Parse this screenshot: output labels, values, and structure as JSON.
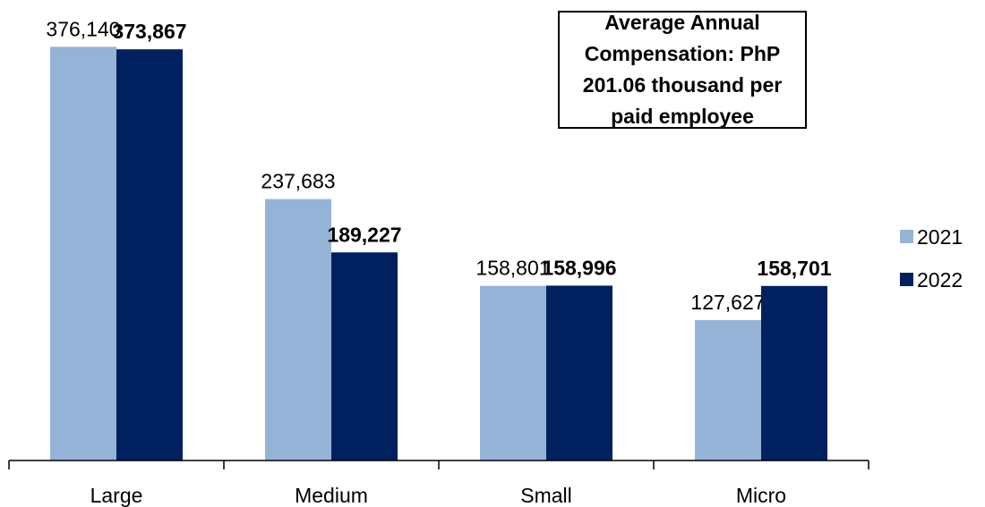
{
  "chart_data": {
    "type": "bar",
    "annotation": "Average Annual Compensation: PhP 201.06 thousand per paid employee",
    "categories": [
      "Large",
      "Medium",
      "Small",
      "Micro"
    ],
    "series": [
      {
        "name": "2021",
        "color": "#95b3d7",
        "values": [
          376140,
          237683,
          158801,
          127627
        ],
        "value_labels": [
          "376,140",
          "237,683",
          "158,801",
          "127,627"
        ]
      },
      {
        "name": "2022",
        "color": "#002060",
        "values": [
          373867,
          189227,
          158996,
          158701
        ],
        "value_labels": [
          "373,867",
          "189,227",
          "158,996",
          "158,701"
        ]
      }
    ],
    "ylim": [
      0,
      400000
    ],
    "legend": "right"
  }
}
